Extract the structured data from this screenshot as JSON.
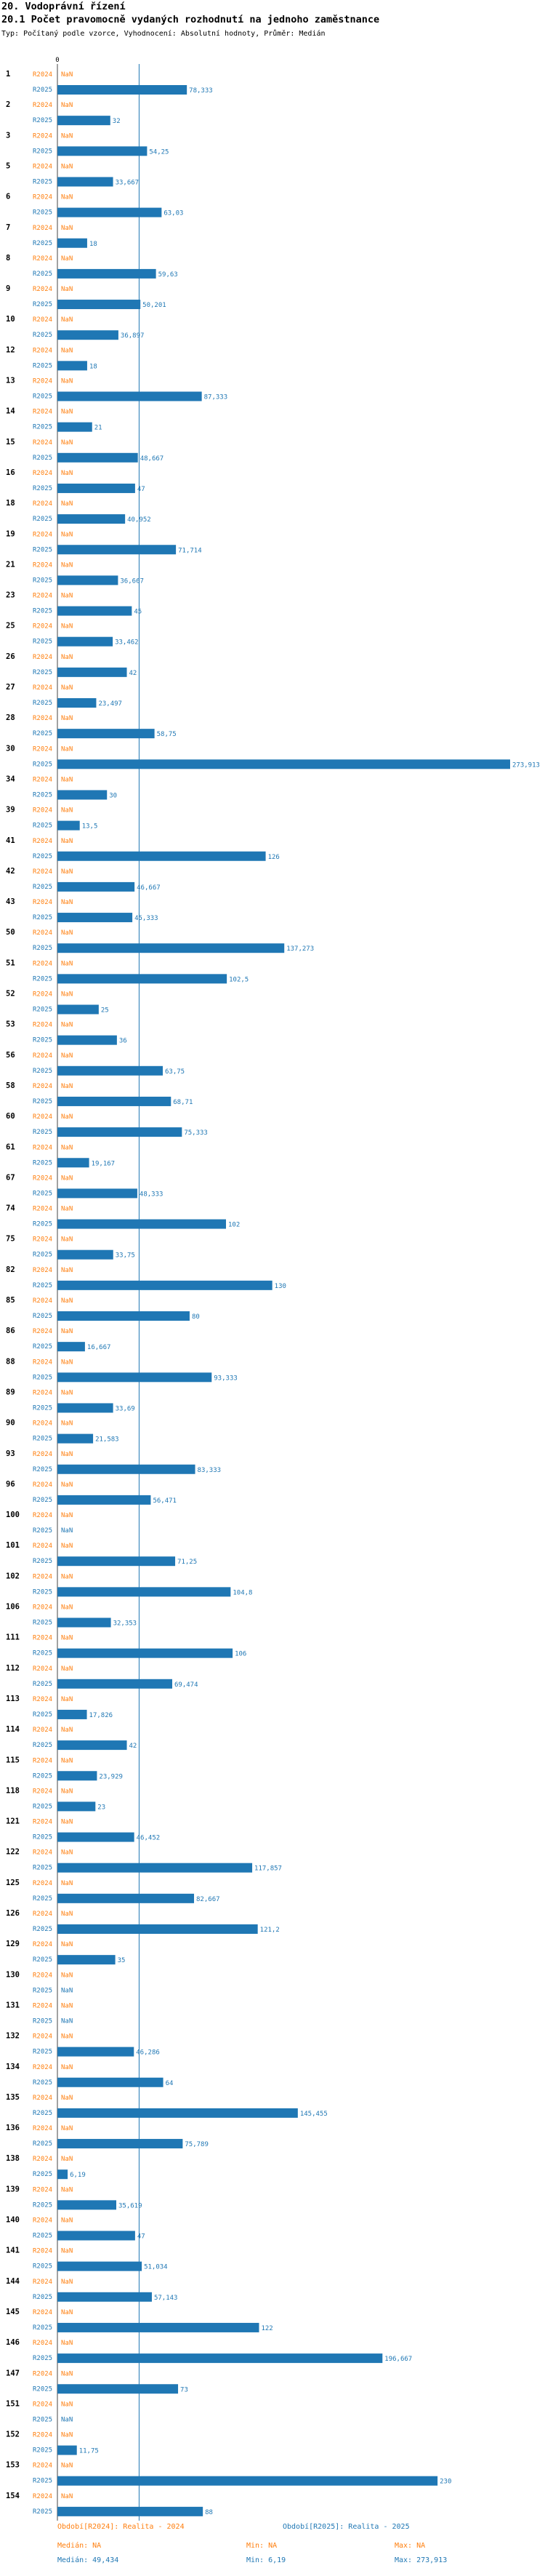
{
  "header": {
    "section": "20. Vodoprávní řízení",
    "title": "20.1 Počet pravomocně vydaných rozhodnutí na jednoho zaměstnance",
    "meta": "Typ: Počítaný podle vzorce, Vyhodnocení: Absolutní hodnoty, Průměr: Medián"
  },
  "colors": {
    "r2024": "#ff7f0e",
    "r2025": "#1f77b4",
    "median_line": "#1f77b4",
    "text": "#000000"
  },
  "chart_data": {
    "type": "bar",
    "orientation": "horizontal",
    "axis": {
      "min": 0,
      "max": 273.913,
      "zero_tick": "0"
    },
    "reference_line": {
      "label": "Medián",
      "value": 49.434
    },
    "missing_label": "NaN",
    "series": [
      {
        "name": "R2024",
        "label": "R2024",
        "legend": "Období[R2024]: Realita - 2024"
      },
      {
        "name": "R2025",
        "label": "R2025",
        "legend": "Období[R2025]: Realita - 2025"
      }
    ],
    "categories": [
      {
        "id": "1",
        "r2024": null,
        "r2025": 78.333,
        "r2025_label": "78,333"
      },
      {
        "id": "2",
        "r2024": null,
        "r2025": 32,
        "r2025_label": "32"
      },
      {
        "id": "3",
        "r2024": null,
        "r2025": 54.25,
        "r2025_label": "54,25"
      },
      {
        "id": "5",
        "r2024": null,
        "r2025": 33.667,
        "r2025_label": "33,667"
      },
      {
        "id": "6",
        "r2024": null,
        "r2025": 63.03,
        "r2025_label": "63,03"
      },
      {
        "id": "7",
        "r2024": null,
        "r2025": 18,
        "r2025_label": "18"
      },
      {
        "id": "8",
        "r2024": null,
        "r2025": 59.63,
        "r2025_label": "59,63"
      },
      {
        "id": "9",
        "r2024": null,
        "r2025": 50.201,
        "r2025_label": "50,201"
      },
      {
        "id": "10",
        "r2024": null,
        "r2025": 36.897,
        "r2025_label": "36,897"
      },
      {
        "id": "12",
        "r2024": null,
        "r2025": 18,
        "r2025_label": "18"
      },
      {
        "id": "13",
        "r2024": null,
        "r2025": 87.333,
        "r2025_label": "87,333"
      },
      {
        "id": "14",
        "r2024": null,
        "r2025": 21,
        "r2025_label": "21"
      },
      {
        "id": "15",
        "r2024": null,
        "r2025": 48.667,
        "r2025_label": "48,667"
      },
      {
        "id": "16",
        "r2024": null,
        "r2025": 47,
        "r2025_label": "47"
      },
      {
        "id": "18",
        "r2024": null,
        "r2025": 40.952,
        "r2025_label": "40,952"
      },
      {
        "id": "19",
        "r2024": null,
        "r2025": 71.714,
        "r2025_label": "71,714"
      },
      {
        "id": "21",
        "r2024": null,
        "r2025": 36.667,
        "r2025_label": "36,667"
      },
      {
        "id": "23",
        "r2024": null,
        "r2025": 45,
        "r2025_label": "45"
      },
      {
        "id": "25",
        "r2024": null,
        "r2025": 33.462,
        "r2025_label": "33,462"
      },
      {
        "id": "26",
        "r2024": null,
        "r2025": 42,
        "r2025_label": "42"
      },
      {
        "id": "27",
        "r2024": null,
        "r2025": 23.497,
        "r2025_label": "23,497"
      },
      {
        "id": "28",
        "r2024": null,
        "r2025": 58.75,
        "r2025_label": "58,75"
      },
      {
        "id": "30",
        "r2024": null,
        "r2025": 273.913,
        "r2025_label": "273,913"
      },
      {
        "id": "34",
        "r2024": null,
        "r2025": 30,
        "r2025_label": "30"
      },
      {
        "id": "39",
        "r2024": null,
        "r2025": 13.5,
        "r2025_label": "13,5"
      },
      {
        "id": "41",
        "r2024": null,
        "r2025": 126,
        "r2025_label": "126"
      },
      {
        "id": "42",
        "r2024": null,
        "r2025": 46.667,
        "r2025_label": "46,667"
      },
      {
        "id": "43",
        "r2024": null,
        "r2025": 45.333,
        "r2025_label": "45,333"
      },
      {
        "id": "50",
        "r2024": null,
        "r2025": 137.273,
        "r2025_label": "137,273"
      },
      {
        "id": "51",
        "r2024": null,
        "r2025": 102.5,
        "r2025_label": "102,5"
      },
      {
        "id": "52",
        "r2024": null,
        "r2025": 25,
        "r2025_label": "25"
      },
      {
        "id": "53",
        "r2024": null,
        "r2025": 36,
        "r2025_label": "36"
      },
      {
        "id": "56",
        "r2024": null,
        "r2025": 63.75,
        "r2025_label": "63,75"
      },
      {
        "id": "58",
        "r2024": null,
        "r2025": 68.71,
        "r2025_label": "68,71"
      },
      {
        "id": "60",
        "r2024": null,
        "r2025": 75.333,
        "r2025_label": "75,333"
      },
      {
        "id": "61",
        "r2024": null,
        "r2025": 19.167,
        "r2025_label": "19,167"
      },
      {
        "id": "67",
        "r2024": null,
        "r2025": 48.333,
        "r2025_label": "48,333"
      },
      {
        "id": "74",
        "r2024": null,
        "r2025": 102,
        "r2025_label": "102"
      },
      {
        "id": "75",
        "r2024": null,
        "r2025": 33.75,
        "r2025_label": "33,75"
      },
      {
        "id": "82",
        "r2024": null,
        "r2025": 130,
        "r2025_label": "130"
      },
      {
        "id": "85",
        "r2024": null,
        "r2025": 80,
        "r2025_label": "80"
      },
      {
        "id": "86",
        "r2024": null,
        "r2025": 16.667,
        "r2025_label": "16,667"
      },
      {
        "id": "88",
        "r2024": null,
        "r2025": 93.333,
        "r2025_label": "93,333"
      },
      {
        "id": "89",
        "r2024": null,
        "r2025": 33.69,
        "r2025_label": "33,69"
      },
      {
        "id": "90",
        "r2024": null,
        "r2025": 21.583,
        "r2025_label": "21,583"
      },
      {
        "id": "93",
        "r2024": null,
        "r2025": 83.333,
        "r2025_label": "83,333"
      },
      {
        "id": "96",
        "r2024": null,
        "r2025": 56.471,
        "r2025_label": "56,471"
      },
      {
        "id": "100",
        "r2024": null,
        "r2025": null,
        "r2025_label": "NaN"
      },
      {
        "id": "101",
        "r2024": null,
        "r2025": 71.25,
        "r2025_label": "71,25"
      },
      {
        "id": "102",
        "r2024": null,
        "r2025": 104.8,
        "r2025_label": "104,8"
      },
      {
        "id": "106",
        "r2024": null,
        "r2025": 32.353,
        "r2025_label": "32,353"
      },
      {
        "id": "111",
        "r2024": null,
        "r2025": 106,
        "r2025_label": "106"
      },
      {
        "id": "112",
        "r2024": null,
        "r2025": 69.474,
        "r2025_label": "69,474"
      },
      {
        "id": "113",
        "r2024": null,
        "r2025": 17.826,
        "r2025_label": "17,826"
      },
      {
        "id": "114",
        "r2024": null,
        "r2025": 42,
        "r2025_label": "42"
      },
      {
        "id": "115",
        "r2024": null,
        "r2025": 23.929,
        "r2025_label": "23,929"
      },
      {
        "id": "118",
        "r2024": null,
        "r2025": 23,
        "r2025_label": "23"
      },
      {
        "id": "121",
        "r2024": null,
        "r2025": 46.452,
        "r2025_label": "46,452"
      },
      {
        "id": "122",
        "r2024": null,
        "r2025": 117.857,
        "r2025_label": "117,857"
      },
      {
        "id": "125",
        "r2024": null,
        "r2025": 82.667,
        "r2025_label": "82,667"
      },
      {
        "id": "126",
        "r2024": null,
        "r2025": 121.2,
        "r2025_label": "121,2"
      },
      {
        "id": "129",
        "r2024": null,
        "r2025": 35,
        "r2025_label": "35"
      },
      {
        "id": "130",
        "r2024": null,
        "r2025": null,
        "r2025_label": "NaN"
      },
      {
        "id": "131",
        "r2024": null,
        "r2025": null,
        "r2025_label": "NaN"
      },
      {
        "id": "132",
        "r2024": null,
        "r2025": 46.286,
        "r2025_label": "46,286"
      },
      {
        "id": "134",
        "r2024": null,
        "r2025": 64,
        "r2025_label": "64"
      },
      {
        "id": "135",
        "r2024": null,
        "r2025": 145.455,
        "r2025_label": "145,455"
      },
      {
        "id": "136",
        "r2024": null,
        "r2025": 75.789,
        "r2025_label": "75,789"
      },
      {
        "id": "138",
        "r2024": null,
        "r2025": 6.19,
        "r2025_label": "6,19"
      },
      {
        "id": "139",
        "r2024": null,
        "r2025": 35.619,
        "r2025_label": "35,619"
      },
      {
        "id": "140",
        "r2024": null,
        "r2025": 47,
        "r2025_label": "47"
      },
      {
        "id": "141",
        "r2024": null,
        "r2025": 51.034,
        "r2025_label": "51,034"
      },
      {
        "id": "144",
        "r2024": null,
        "r2025": 57.143,
        "r2025_label": "57,143"
      },
      {
        "id": "145",
        "r2024": null,
        "r2025": 122,
        "r2025_label": "122"
      },
      {
        "id": "146",
        "r2024": null,
        "r2025": 196.667,
        "r2025_label": "196,667"
      },
      {
        "id": "147",
        "r2024": null,
        "r2025": 73,
        "r2025_label": "73"
      },
      {
        "id": "151",
        "r2024": null,
        "r2025": null,
        "r2025_label": "NaN"
      },
      {
        "id": "152",
        "r2024": null,
        "r2025": 11.75,
        "r2025_label": "11,75"
      },
      {
        "id": "153",
        "r2024": null,
        "r2025": 230,
        "r2025_label": "230"
      },
      {
        "id": "154",
        "r2024": null,
        "r2025": 88,
        "r2025_label": "88"
      }
    ]
  },
  "footer": {
    "legend_2024": "Období[R2024]: Realita - 2024",
    "legend_2025": "Období[R2025]: Realita - 2025",
    "stats_2024": {
      "median": "Medián: NA",
      "min": "Min: NA",
      "max": "Max: NA"
    },
    "stats_2025": {
      "median": "Medián: 49,434",
      "min": "Min: 6,19",
      "max": "Max: 273,913"
    }
  }
}
